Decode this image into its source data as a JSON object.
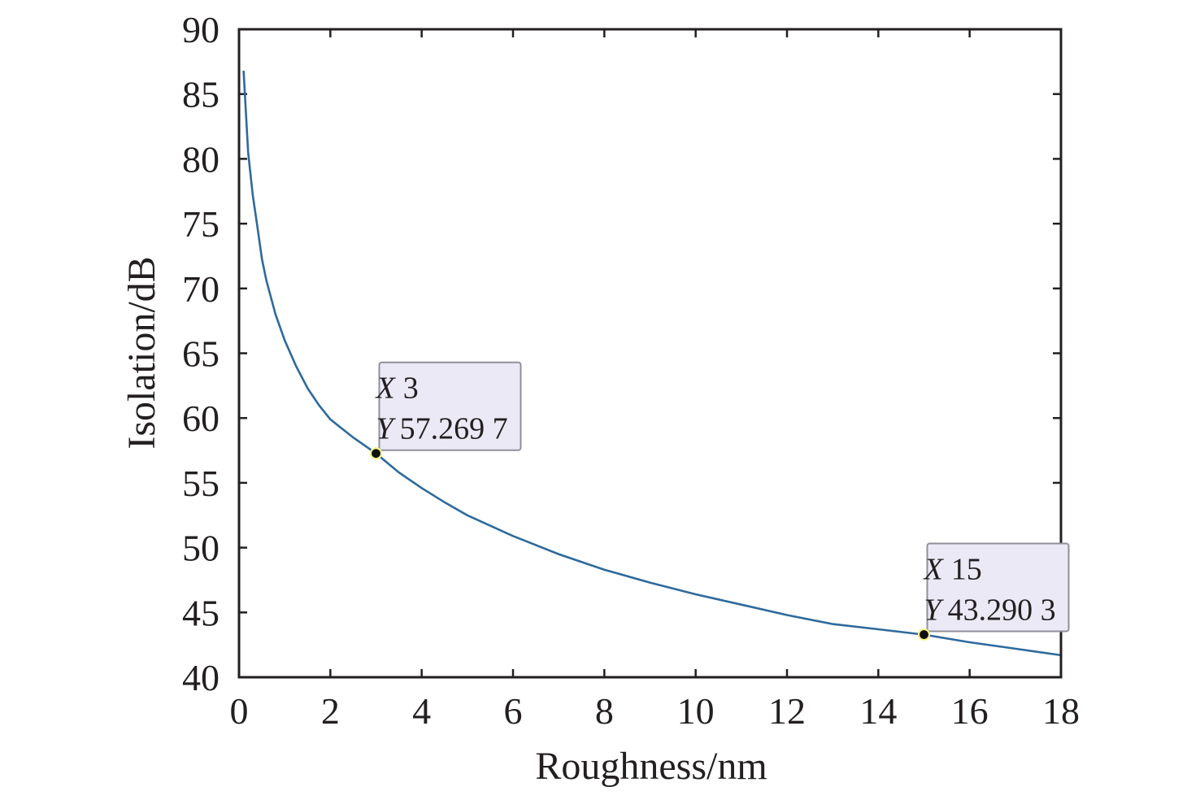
{
  "chart_data": {
    "type": "line",
    "xlabel": "Roughness/nm",
    "ylabel": "Isolation/dB",
    "xlim": [
      0,
      18
    ],
    "ylim": [
      40,
      90
    ],
    "xticks": [
      0,
      2,
      4,
      6,
      8,
      10,
      12,
      14,
      16,
      18
    ],
    "yticks": [
      40,
      45,
      50,
      55,
      60,
      65,
      70,
      75,
      80,
      85,
      90
    ],
    "grid": false,
    "line_color": "#2e6a9c",
    "series": [
      {
        "x": [
          0.1,
          0.2,
          0.3,
          0.4,
          0.5,
          0.6,
          0.8,
          1.0,
          1.25,
          1.5,
          1.75,
          2.0,
          2.5,
          3.0,
          3.5,
          4.0,
          4.5,
          5.0,
          6.0,
          7.0,
          8.0,
          9.0,
          10.0,
          11.0,
          12.0,
          13.0,
          14.0,
          15.0,
          16.0,
          17.0,
          18.0
        ],
        "y": [
          86.8,
          80.5,
          77.2,
          74.8,
          72.3,
          70.6,
          68.0,
          66.0,
          64.0,
          62.3,
          61.0,
          59.9,
          58.5,
          57.27,
          55.8,
          54.6,
          53.5,
          52.5,
          50.9,
          49.5,
          48.3,
          47.3,
          46.4,
          45.6,
          44.8,
          44.1,
          43.7,
          43.29,
          42.7,
          42.2,
          41.7
        ]
      }
    ],
    "datatips": [
      {
        "x_key": "X",
        "x_value": "3",
        "y_key": "Y",
        "y_value": "57.269 7",
        "x": 3,
        "y": 57.2697
      },
      {
        "x_key": "X",
        "x_value": "15",
        "y_key": "Y",
        "y_value": "43.290 3",
        "x": 15,
        "y": 43.2903
      }
    ]
  }
}
